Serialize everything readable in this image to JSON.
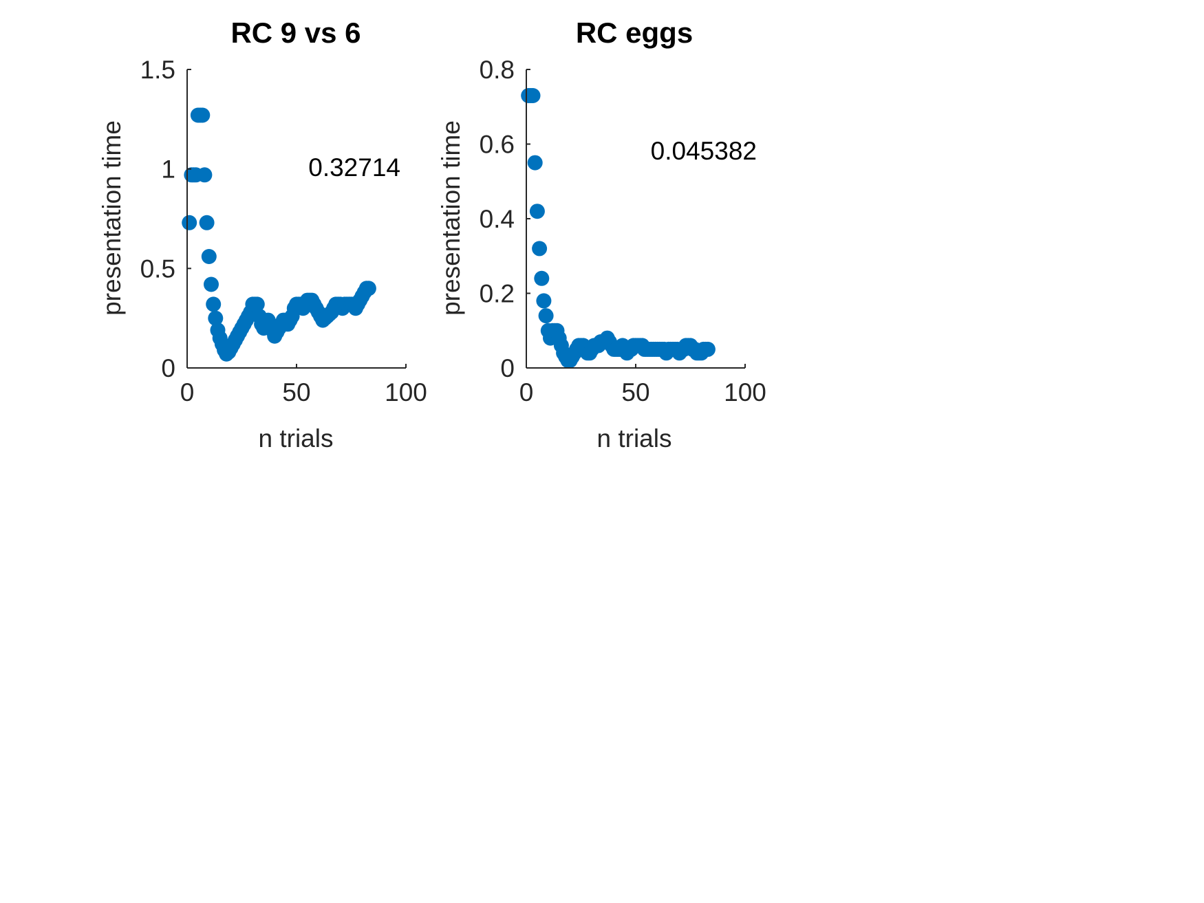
{
  "marker_color": "#0072BD",
  "axis_color": "#262626",
  "chart_data": [
    {
      "type": "scatter",
      "title": "RC 9 vs 6",
      "xlabel": "n trials",
      "ylabel": "presentation time",
      "xlim": [
        0,
        100
      ],
      "ylim": [
        0,
        1.5
      ],
      "xticks": [
        "0",
        "50",
        "100"
      ],
      "yticks": [
        "0",
        "0.5",
        "1",
        "1.5"
      ],
      "annotation": "0.32714",
      "x": [
        1,
        2,
        3,
        4,
        5,
        6,
        7,
        8,
        9,
        10,
        11,
        12,
        13,
        14,
        15,
        16,
        17,
        18,
        19,
        20,
        21,
        22,
        23,
        24,
        25,
        26,
        27,
        28,
        29,
        30,
        31,
        32,
        33,
        34,
        35,
        36,
        37,
        38,
        39,
        40,
        41,
        42,
        43,
        44,
        45,
        46,
        47,
        48,
        49,
        50,
        51,
        52,
        53,
        54,
        55,
        56,
        57,
        58,
        59,
        60,
        61,
        62,
        63,
        64,
        65,
        66,
        67,
        68,
        69,
        70,
        71,
        72,
        73,
        74,
        75,
        76,
        77,
        78,
        79,
        80,
        81,
        82,
        83
      ],
      "y": [
        0.73,
        0.97,
        0.97,
        0.97,
        1.27,
        1.27,
        1.27,
        0.97,
        0.73,
        0.56,
        0.42,
        0.32,
        0.25,
        0.19,
        0.15,
        0.12,
        0.09,
        0.07,
        0.08,
        0.1,
        0.12,
        0.14,
        0.16,
        0.18,
        0.2,
        0.22,
        0.24,
        0.26,
        0.28,
        0.32,
        0.32,
        0.32,
        0.26,
        0.22,
        0.2,
        0.22,
        0.24,
        0.22,
        0.19,
        0.16,
        0.18,
        0.2,
        0.22,
        0.24,
        0.24,
        0.22,
        0.24,
        0.26,
        0.3,
        0.32,
        0.32,
        0.32,
        0.3,
        0.32,
        0.34,
        0.34,
        0.34,
        0.32,
        0.3,
        0.28,
        0.26,
        0.24,
        0.25,
        0.26,
        0.27,
        0.28,
        0.3,
        0.32,
        0.32,
        0.32,
        0.3,
        0.32,
        0.32,
        0.32,
        0.32,
        0.32,
        0.3,
        0.32,
        0.34,
        0.36,
        0.38,
        0.4,
        0.4
      ]
    },
    {
      "type": "scatter",
      "title": "RC eggs",
      "xlabel": "n trials",
      "ylabel": "presentation time",
      "xlim": [
        0,
        100
      ],
      "ylim": [
        0,
        0.8
      ],
      "xticks": [
        "0",
        "50",
        "100"
      ],
      "yticks": [
        "0",
        "0.2",
        "0.4",
        "0.6",
        "0.8"
      ],
      "annotation": "0.045382",
      "x": [
        1,
        2,
        3,
        4,
        5,
        6,
        7,
        8,
        9,
        10,
        11,
        12,
        13,
        14,
        15,
        16,
        17,
        18,
        19,
        20,
        21,
        22,
        23,
        24,
        25,
        26,
        27,
        28,
        29,
        30,
        31,
        32,
        33,
        34,
        35,
        36,
        37,
        38,
        39,
        40,
        41,
        42,
        43,
        44,
        45,
        46,
        47,
        48,
        49,
        50,
        51,
        52,
        53,
        54,
        55,
        56,
        57,
        58,
        59,
        60,
        61,
        62,
        63,
        64,
        65,
        66,
        67,
        68,
        69,
        70,
        71,
        72,
        73,
        74,
        75,
        76,
        77,
        78,
        79,
        80,
        81,
        82,
        83
      ],
      "y": [
        0.73,
        0.73,
        0.73,
        0.55,
        0.42,
        0.32,
        0.24,
        0.18,
        0.14,
        0.1,
        0.08,
        0.1,
        0.1,
        0.1,
        0.08,
        0.06,
        0.04,
        0.03,
        0.02,
        0.02,
        0.03,
        0.04,
        0.05,
        0.06,
        0.06,
        0.06,
        0.05,
        0.04,
        0.04,
        0.05,
        0.06,
        0.06,
        0.06,
        0.07,
        0.07,
        0.07,
        0.08,
        0.07,
        0.06,
        0.05,
        0.05,
        0.05,
        0.05,
        0.06,
        0.05,
        0.04,
        0.05,
        0.05,
        0.06,
        0.06,
        0.06,
        0.06,
        0.06,
        0.05,
        0.05,
        0.05,
        0.05,
        0.05,
        0.05,
        0.05,
        0.05,
        0.05,
        0.05,
        0.04,
        0.05,
        0.05,
        0.05,
        0.05,
        0.05,
        0.04,
        0.05,
        0.05,
        0.06,
        0.06,
        0.06,
        0.05,
        0.05,
        0.04,
        0.04,
        0.04,
        0.05,
        0.05,
        0.05
      ]
    }
  ]
}
